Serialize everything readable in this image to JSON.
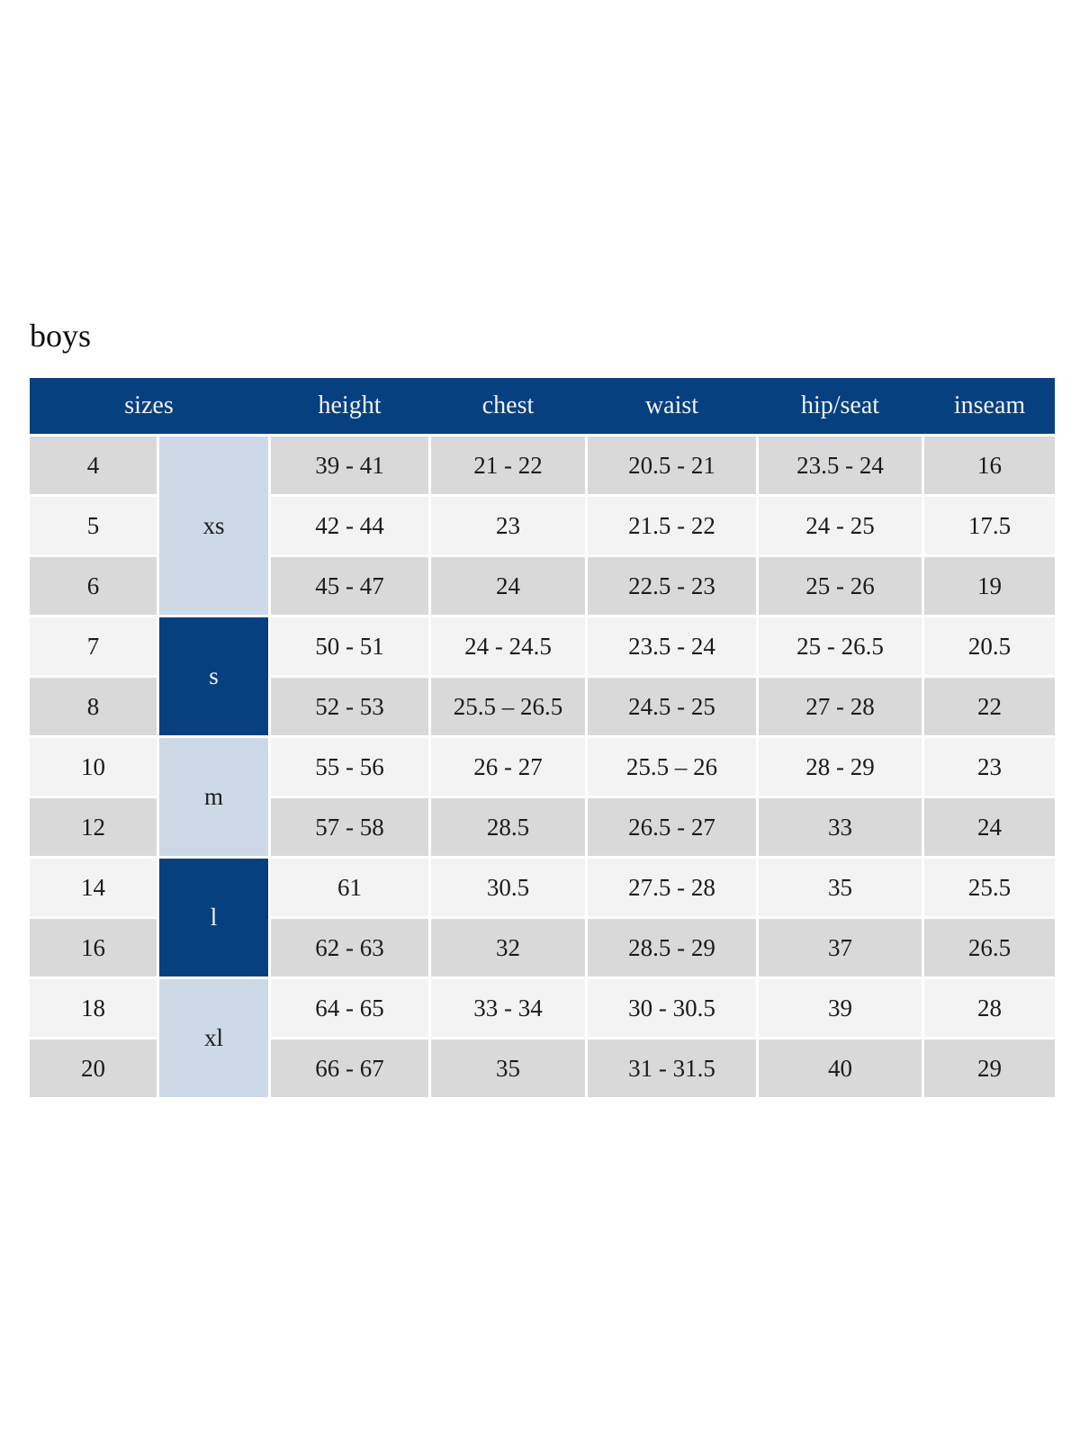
{
  "page": {
    "title": "boys"
  },
  "table": {
    "columns": [
      "sizes",
      "height",
      "chest",
      "waist",
      "hip/seat",
      "inseam"
    ],
    "size_groups": [
      {
        "label": "xs",
        "sizes": [
          "4",
          "5",
          "6"
        ],
        "span": 3,
        "variant": "light"
      },
      {
        "label": "s",
        "sizes": [
          "7",
          "8"
        ],
        "span": 2,
        "variant": "dark"
      },
      {
        "label": "m",
        "sizes": [
          "10",
          "12"
        ],
        "span": 2,
        "variant": "light"
      },
      {
        "label": "l",
        "sizes": [
          "14",
          "16"
        ],
        "span": 2,
        "variant": "dark"
      },
      {
        "label": "xl",
        "sizes": [
          "18",
          "20"
        ],
        "span": 2,
        "variant": "light"
      }
    ],
    "rows": [
      {
        "size": "4",
        "height": "39 - 41",
        "chest": "21 - 22",
        "waist": "20.5 - 21",
        "hip_seat": "23.5 - 24",
        "inseam": "16"
      },
      {
        "size": "5",
        "height": "42 - 44",
        "chest": "23",
        "waist": "21.5 - 22",
        "hip_seat": "24 - 25",
        "inseam": "17.5"
      },
      {
        "size": "6",
        "height": "45 - 47",
        "chest": "24",
        "waist": "22.5 - 23",
        "hip_seat": "25 - 26",
        "inseam": "19"
      },
      {
        "size": "7",
        "height": "50 - 51",
        "chest": "24 - 24.5",
        "waist": "23.5 - 24",
        "hip_seat": "25 - 26.5",
        "inseam": "20.5"
      },
      {
        "size": "8",
        "height": "52 - 53",
        "chest": "25.5 – 26.5",
        "waist": "24.5 - 25",
        "hip_seat": "27 - 28",
        "inseam": "22"
      },
      {
        "size": "10",
        "height": "55 - 56",
        "chest": "26 - 27",
        "waist": "25.5 – 26",
        "hip_seat": "28 - 29",
        "inseam": "23"
      },
      {
        "size": "12",
        "height": "57 - 58",
        "chest": "28.5",
        "waist": "26.5 - 27",
        "hip_seat": "33",
        "inseam": "24"
      },
      {
        "size": "14",
        "height": "61",
        "chest": "30.5",
        "waist": "27.5 - 28",
        "hip_seat": "35",
        "inseam": "25.5"
      },
      {
        "size": "16",
        "height": "62 - 63",
        "chest": "32",
        "waist": "28.5 - 29",
        "hip_seat": "37",
        "inseam": "26.5"
      },
      {
        "size": "18",
        "height": "64 - 65",
        "chest": "33 - 34",
        "waist": "30 - 30.5",
        "hip_seat": "39",
        "inseam": "28"
      },
      {
        "size": "20",
        "height": "66 - 67",
        "chest": "35",
        "waist": "31 - 31.5",
        "hip_seat": "40",
        "inseam": "29"
      }
    ],
    "colors": {
      "header_bg": "#07407f",
      "header_text": "#f3f4f8",
      "group_light_bg": "#cdd9e7",
      "group_dark_bg": "#07407f",
      "row_shade_dark": "#d9d9d9",
      "row_shade_light": "#f3f3f3",
      "cell_text": "#1b1b1b"
    }
  }
}
